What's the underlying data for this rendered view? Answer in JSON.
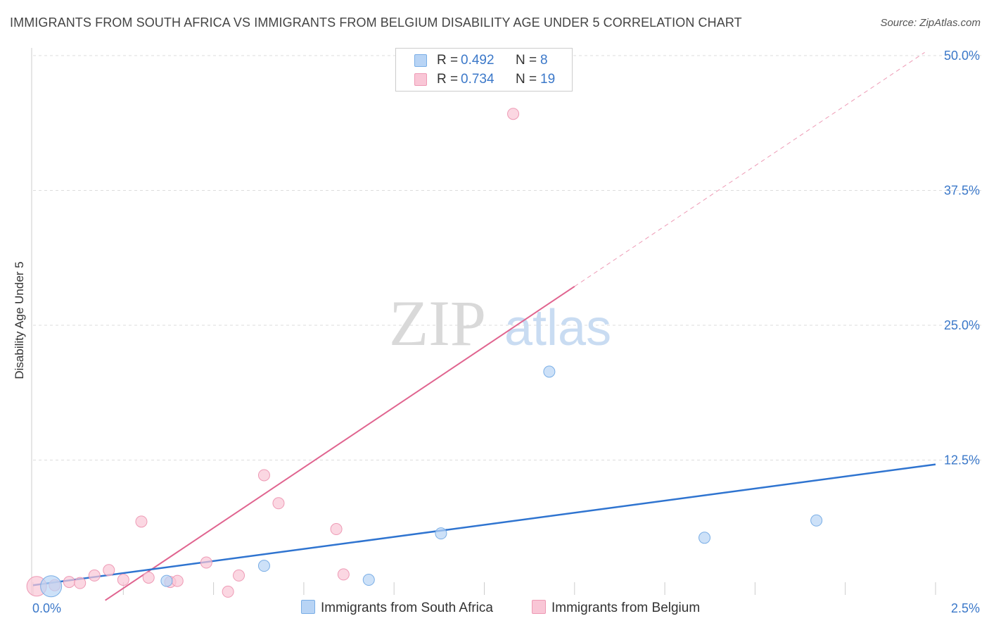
{
  "header": {
    "title": "IMMIGRANTS FROM SOUTH AFRICA VS IMMIGRANTS FROM BELGIUM DISABILITY AGE UNDER 5 CORRELATION CHART",
    "source": "Source: ZipAtlas.com"
  },
  "watermark": {
    "zip": "ZIP",
    "atlas": "atlas"
  },
  "legend_top": {
    "rows": [
      {
        "r_label": "R =",
        "r_value": "0.492",
        "n_label": "N =",
        "n_value": "8"
      },
      {
        "r_label": "R =",
        "r_value": "0.734",
        "n_label": "N =",
        "n_value": "19"
      }
    ]
  },
  "legend_bottom": {
    "south_africa": "Immigrants from South Africa",
    "belgium": "Immigrants from Belgium"
  },
  "colors": {
    "south_africa_fill": "#b8d4f5",
    "south_africa_stroke": "#7aaee6",
    "south_africa_line": "#2f74d0",
    "belgium_fill": "#f9c6d6",
    "belgium_stroke": "#ee9ab5",
    "belgium_line": "#e0648f",
    "tick": "#3b78c9",
    "grid": "#dddddd"
  },
  "chart_data": {
    "type": "scatter",
    "title": "IMMIGRANTS FROM SOUTH AFRICA VS IMMIGRANTS FROM BELGIUM DISABILITY AGE UNDER 5 CORRELATION CHART",
    "xlabel": "",
    "ylabel": "Disability Age Under 5",
    "xlim": [
      0,
      2.5
    ],
    "ylim": [
      0,
      50
    ],
    "x_tick_labels": [
      "0.0%",
      "2.5%"
    ],
    "y_ticks": [
      12.5,
      25.0,
      37.5,
      50.0
    ],
    "y_tick_labels": [
      "12.5%",
      "25.0%",
      "37.5%",
      "50.0%"
    ],
    "grid": true,
    "series": [
      {
        "name": "Immigrants from South Africa",
        "R": 0.492,
        "N": 8,
        "points": [
          {
            "x": 0.05,
            "y": 0.8,
            "big": true
          },
          {
            "x": 0.37,
            "y": 1.3
          },
          {
            "x": 0.64,
            "y": 2.7
          },
          {
            "x": 0.93,
            "y": 1.4
          },
          {
            "x": 1.13,
            "y": 5.7
          },
          {
            "x": 1.43,
            "y": 20.7
          },
          {
            "x": 1.86,
            "y": 5.3
          },
          {
            "x": 2.17,
            "y": 6.9
          }
        ],
        "trend": {
          "x0": 0.0,
          "y0": 0.9,
          "x1": 2.5,
          "y1": 12.1
        }
      },
      {
        "name": "Immigrants from Belgium",
        "R": 0.734,
        "N": 19,
        "points": [
          {
            "x": 0.01,
            "y": 0.8,
            "big": true
          },
          {
            "x": 0.06,
            "y": 0.9
          },
          {
            "x": 0.1,
            "y": 1.2
          },
          {
            "x": 0.13,
            "y": 1.1
          },
          {
            "x": 0.17,
            "y": 1.8
          },
          {
            "x": 0.21,
            "y": 2.3
          },
          {
            "x": 0.25,
            "y": 1.4
          },
          {
            "x": 0.3,
            "y": 6.8
          },
          {
            "x": 0.32,
            "y": 1.6
          },
          {
            "x": 0.38,
            "y": 1.2
          },
          {
            "x": 0.4,
            "y": 1.3
          },
          {
            "x": 0.48,
            "y": 3.0
          },
          {
            "x": 0.54,
            "y": 0.3
          },
          {
            "x": 0.57,
            "y": 1.8
          },
          {
            "x": 0.64,
            "y": 11.1
          },
          {
            "x": 0.68,
            "y": 8.5
          },
          {
            "x": 0.84,
            "y": 6.1
          },
          {
            "x": 0.86,
            "y": 1.9
          },
          {
            "x": 1.33,
            "y": 44.6
          }
        ],
        "trend": {
          "x0": 0.2,
          "y0": -0.5,
          "x1": 1.5,
          "y1": 28.6
        },
        "trend_extension": {
          "x0": 1.5,
          "y0": 28.6,
          "x1": 2.47,
          "y1": 50.3
        }
      }
    ]
  }
}
